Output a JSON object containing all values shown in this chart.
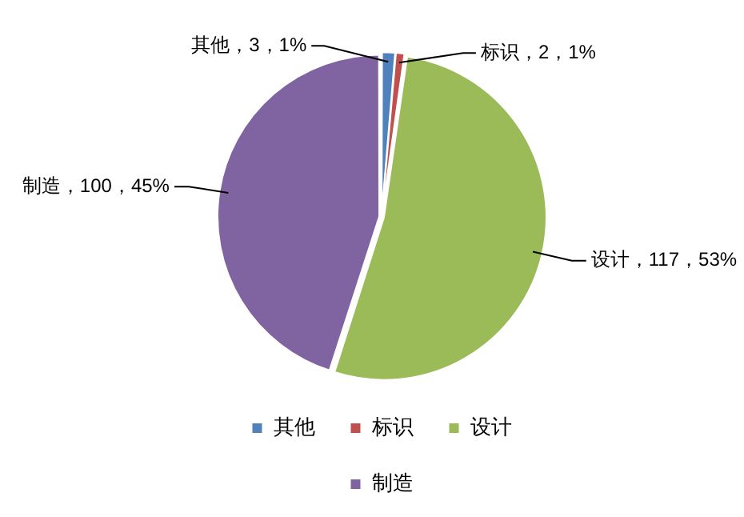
{
  "chart_data": {
    "type": "pie",
    "categories": [
      "其他",
      "标识",
      "设计",
      "制造"
    ],
    "values": [
      3,
      2,
      117,
      100
    ],
    "colors": [
      "#4f81bd",
      "#c0504d",
      "#9bbb59",
      "#8064a2"
    ],
    "value_labels": [
      "其他，3，1%",
      "标识，2，1%",
      "设计，117，53%",
      "制造，100，45%"
    ],
    "legend": "bottom"
  }
}
